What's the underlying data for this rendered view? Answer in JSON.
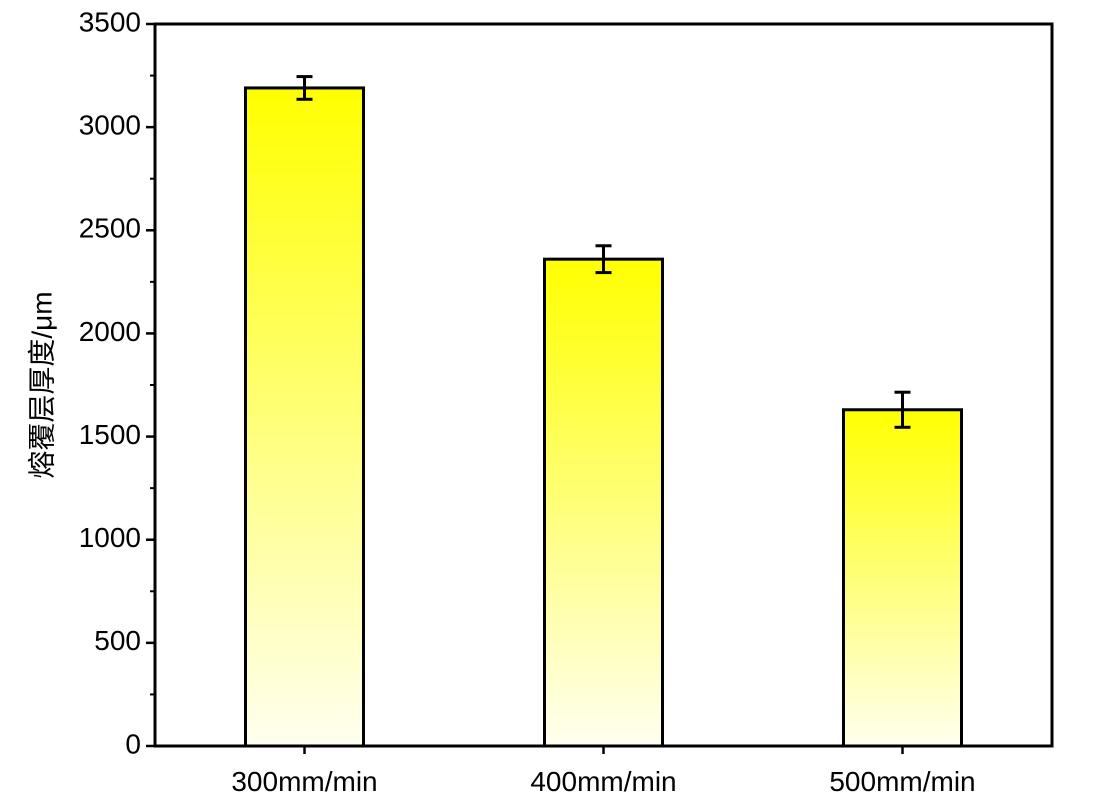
{
  "chart_data": {
    "type": "bar",
    "title": "",
    "xlabel": "",
    "ylabel": "熔覆层厚度/μm",
    "categories": [
      "300mm/min",
      "400mm/min",
      "500mm/min"
    ],
    "values": [
      3190,
      2360,
      1630
    ],
    "errors": [
      55,
      65,
      85
    ],
    "ylim": [
      0,
      3500
    ],
    "yticks": [
      0,
      500,
      1000,
      1500,
      2000,
      2500,
      3000,
      3500
    ],
    "ytick_labels": [
      "0",
      "500",
      "1000",
      "1500",
      "2000",
      "2500",
      "3000",
      "3500"
    ],
    "grid": false,
    "legend": "none",
    "colors": {
      "bar_top": "#ffff00",
      "bar_bottom": "#fffff0",
      "bar_edge": "#000000",
      "axis": "#000000",
      "background": "#ffffff"
    }
  }
}
